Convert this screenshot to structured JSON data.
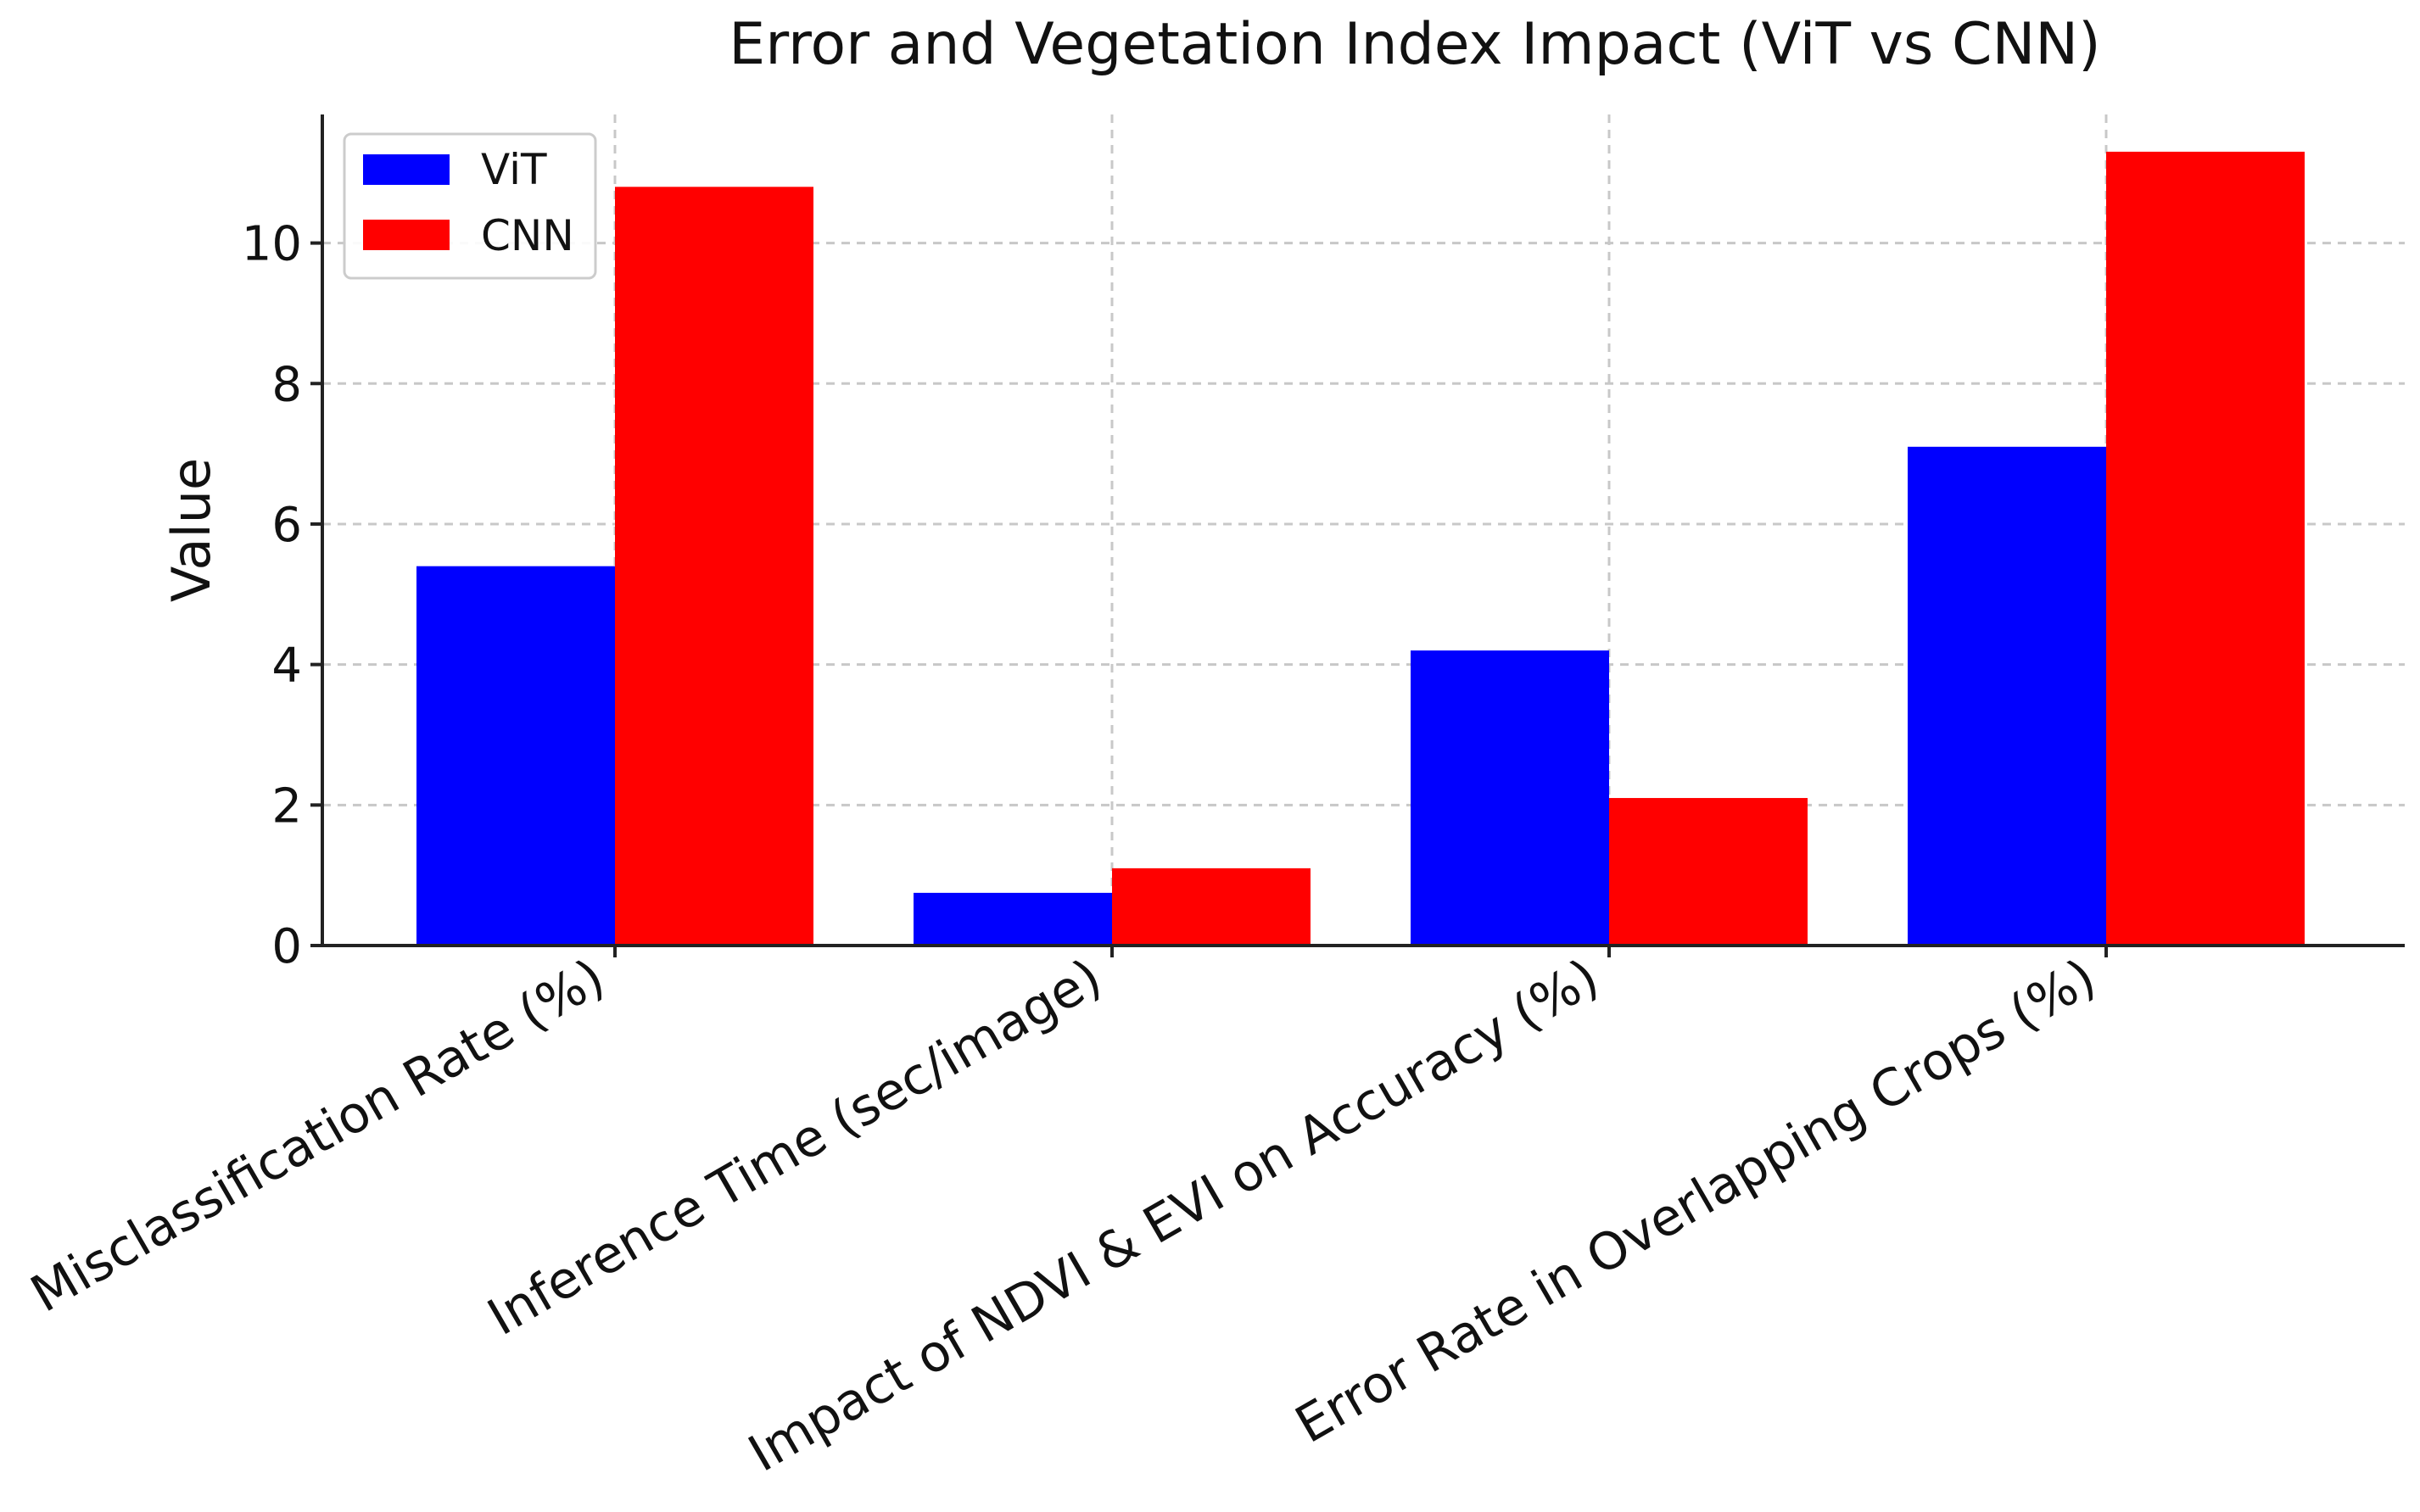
{
  "chart_data": {
    "type": "bar",
    "title": "Error and Vegetation Index Impact (ViT vs CNN)",
    "xlabel": "",
    "ylabel": "Value",
    "categories": [
      "Misclassification Rate (%)",
      "Inference Time (sec/image)",
      "Impact of NDVI & EVI on Accuracy (%)",
      "Error Rate in Overlapping Crops (%)"
    ],
    "series": [
      {
        "name": "ViT",
        "color": "#0000ff",
        "values": [
          5.4,
          0.75,
          4.2,
          7.1
        ]
      },
      {
        "name": "CNN",
        "color": "#ff0000",
        "values": [
          10.8,
          1.1,
          2.1,
          11.3
        ]
      }
    ],
    "ylim": [
      0,
      11.83
    ],
    "yticks": [
      0,
      2,
      4,
      6,
      8,
      10
    ],
    "grid": true,
    "legend_position": "top-left"
  }
}
